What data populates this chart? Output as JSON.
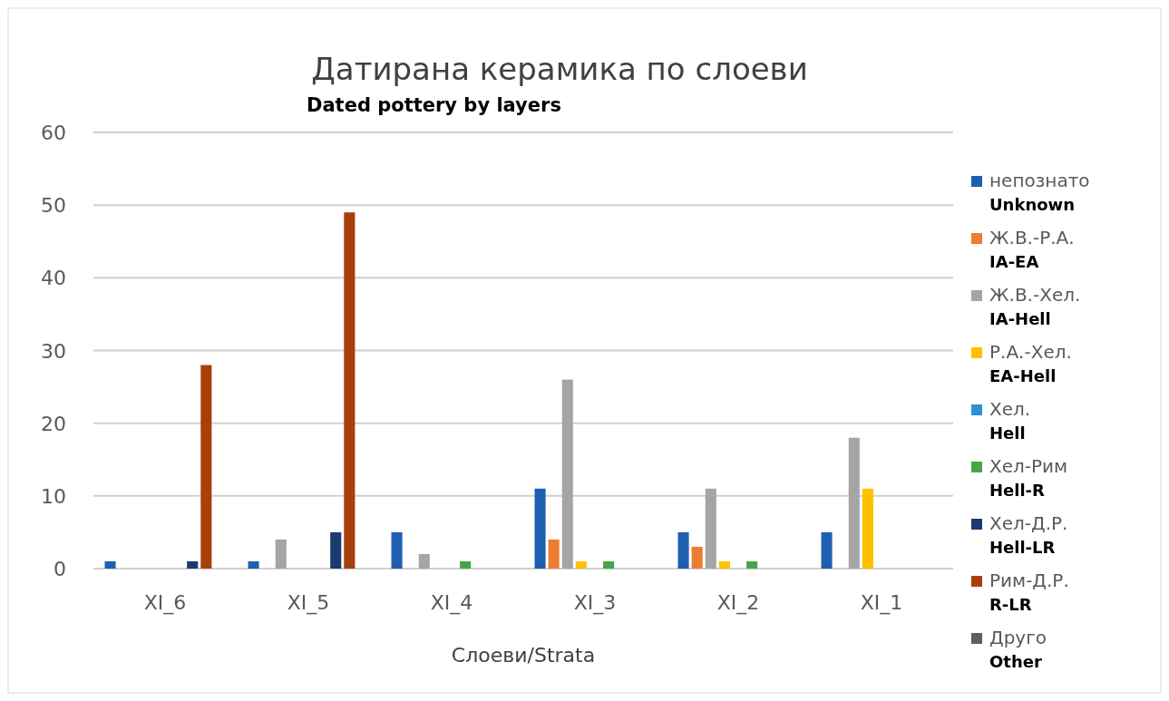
{
  "chart_data": {
    "type": "bar",
    "title": "Датирана керамика по слоеви",
    "subtitle": "Dated pottery by layers",
    "xlabel": "Слоеви/Strata",
    "categories": [
      "XI_6",
      "XI_5",
      "XI_4",
      "XI_3",
      "XI_2",
      "XI_1"
    ],
    "series": [
      {
        "name": "непознато\nUnknown",
        "color": "#1f5fb0",
        "values": [
          1,
          1,
          5,
          11,
          5,
          5
        ]
      },
      {
        "name": "Ж.В.-Р.А.\nIA-EA",
        "color": "#ed7d31",
        "values": [
          0,
          0,
          0,
          4,
          3,
          0
        ]
      },
      {
        "name": "Ж.В.-Хел.\nIA-Hell",
        "color": "#a5a5a5",
        "values": [
          0,
          4,
          2,
          26,
          11,
          18
        ]
      },
      {
        "name": "Р.А.-Хел.\nEA-Hell",
        "color": "#ffc000",
        "values": [
          0,
          0,
          0,
          1,
          1,
          11
        ]
      },
      {
        "name": "Хел.\nHell",
        "color": "#2e8fd6",
        "values": [
          0,
          0,
          0,
          0,
          0,
          0
        ]
      },
      {
        "name": "Хел-Рим\nHell-R",
        "color": "#48a447",
        "values": [
          0,
          0,
          1,
          1,
          1,
          0
        ]
      },
      {
        "name": "Хел-Д.Р.\nHell-LR",
        "color": "#1a3a70",
        "values": [
          1,
          5,
          0,
          0,
          0,
          0
        ]
      },
      {
        "name": "Рим-Д.Р.\nR-LR",
        "color": "#a8400c",
        "values": [
          28,
          49,
          0,
          0,
          0,
          0
        ]
      },
      {
        "name": "Друго\nOther",
        "color": "#5f5f5f",
        "values": [
          0,
          0,
          0,
          0,
          0,
          0
        ]
      }
    ],
    "ylim": [
      0,
      60
    ],
    "yticks": [
      0,
      10,
      20,
      30,
      40,
      50,
      60
    ],
    "grid": "y",
    "legend": "right"
  }
}
